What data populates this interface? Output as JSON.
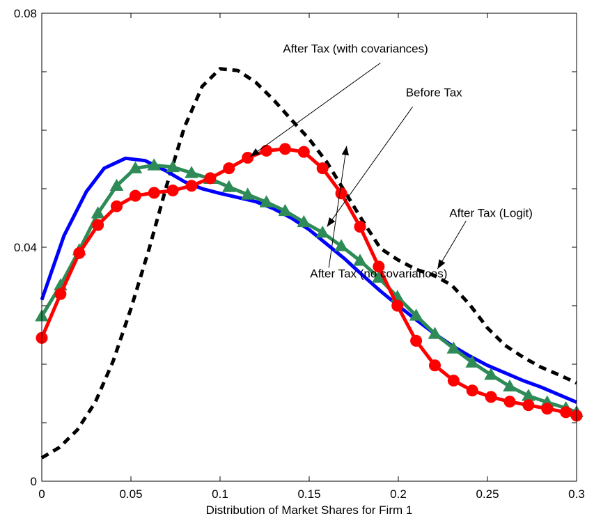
{
  "chart_data": {
    "type": "line",
    "title": "",
    "xlabel": "Distribution of Market Shares for Firm 1",
    "ylabel": "",
    "xlim": [
      0,
      0.3
    ],
    "ylim": [
      0,
      0.08
    ],
    "grid": false,
    "x_ticks": [
      0,
      0.05,
      0.1,
      0.15,
      0.2,
      0.25,
      0.3
    ],
    "x_tick_labels": [
      "0",
      "0.05",
      "0.1",
      "0.15",
      "0.2",
      "0.25",
      "0.3"
    ],
    "y_ticks": [
      0,
      0.04,
      0.08
    ],
    "y_tick_labels": [
      "0",
      "0.04",
      "0.08"
    ],
    "series": [
      {
        "color": "#000000",
        "style": "dashed",
        "marker": "none",
        "x": [
          0,
          0.01,
          0.02,
          0.03,
          0.04,
          0.05,
          0.06,
          0.07,
          0.08,
          0.09,
          0.1,
          0.11,
          0.12,
          0.13,
          0.14,
          0.15,
          0.16,
          0.17,
          0.18,
          0.19,
          0.2,
          0.21,
          0.22,
          0.23,
          0.24,
          0.25,
          0.26,
          0.27,
          0.28,
          0.29,
          0.3
        ],
        "y": [
          0.004,
          0.0058,
          0.0088,
          0.0135,
          0.0205,
          0.0295,
          0.0395,
          0.0505,
          0.0605,
          0.0675,
          0.0705,
          0.0702,
          0.0682,
          0.0652,
          0.0618,
          0.0585,
          0.0545,
          0.0495,
          0.0445,
          0.0398,
          0.0378,
          0.0362,
          0.0352,
          0.0335,
          0.0302,
          0.0262,
          0.0232,
          0.0212,
          0.0195,
          0.0182,
          0.0168
        ]
      },
      {
        "color": "#0000ff",
        "style": "solid",
        "marker": "none",
        "x": [
          0,
          0.0125,
          0.025,
          0.035,
          0.047,
          0.058,
          0.07,
          0.08,
          0.09,
          0.1,
          0.11,
          0.12,
          0.13,
          0.14,
          0.15,
          0.16,
          0.17,
          0.18,
          0.19,
          0.2,
          0.21,
          0.22,
          0.23,
          0.24,
          0.25,
          0.26,
          0.27,
          0.28,
          0.29,
          0.3
        ],
        "y": [
          0.031,
          0.042,
          0.0495,
          0.0535,
          0.0552,
          0.0548,
          0.053,
          0.0512,
          0.05,
          0.0492,
          0.0485,
          0.0478,
          0.0466,
          0.045,
          0.043,
          0.0405,
          0.038,
          0.0352,
          0.0325,
          0.03,
          0.0276,
          0.0253,
          0.0232,
          0.0214,
          0.0198,
          0.0185,
          0.0172,
          0.0161,
          0.0148,
          0.0135
        ]
      },
      {
        "color": "#2e8b57",
        "style": "solid",
        "marker": "triangle",
        "x": [
          0,
          0.0105,
          0.021,
          0.0315,
          0.042,
          0.0525,
          0.063,
          0.0735,
          0.084,
          0.0945,
          0.105,
          0.1155,
          0.126,
          0.1365,
          0.147,
          0.1575,
          0.168,
          0.1785,
          0.189,
          0.1995,
          0.21,
          0.2205,
          0.231,
          0.2415,
          0.252,
          0.2625,
          0.273,
          0.2835,
          0.294,
          0.3
        ],
        "y": [
          0.0282,
          0.0335,
          0.0395,
          0.0458,
          0.0505,
          0.0535,
          0.054,
          0.0537,
          0.0527,
          0.0517,
          0.0503,
          0.049,
          0.0477,
          0.0462,
          0.0443,
          0.0425,
          0.0402,
          0.0377,
          0.0348,
          0.0315,
          0.0283,
          0.0252,
          0.0227,
          0.0203,
          0.0182,
          0.0162,
          0.0146,
          0.0135,
          0.0125,
          0.0118
        ]
      },
      {
        "color": "#ff0000",
        "style": "solid",
        "marker": "circle",
        "x": [
          0,
          0.0105,
          0.021,
          0.0315,
          0.042,
          0.0525,
          0.063,
          0.0735,
          0.084,
          0.0945,
          0.105,
          0.1155,
          0.126,
          0.1365,
          0.147,
          0.1575,
          0.168,
          0.1785,
          0.189,
          0.1995,
          0.21,
          0.2205,
          0.231,
          0.2415,
          0.252,
          0.2625,
          0.273,
          0.2835,
          0.294,
          0.3
        ],
        "y": [
          0.0245,
          0.032,
          0.039,
          0.0438,
          0.047,
          0.0488,
          0.0493,
          0.0497,
          0.0505,
          0.0518,
          0.0535,
          0.0553,
          0.0565,
          0.0568,
          0.0563,
          0.0535,
          0.0492,
          0.0435,
          0.0367,
          0.03,
          0.024,
          0.0198,
          0.0172,
          0.0155,
          0.0144,
          0.0136,
          0.013,
          0.0124,
          0.0118,
          0.0112
        ]
      }
    ],
    "annotations": [
      {
        "text": "After Tax (with covariances)",
        "text_x": 0.176,
        "text_y": 0.0733,
        "anchor": "middle",
        "arrow_from": [
          0.19,
          0.0715
        ],
        "arrow_to": [
          0.117,
          0.0555
        ]
      },
      {
        "text": "Before Tax",
        "text_x": 0.22,
        "text_y": 0.0658,
        "anchor": "middle",
        "arrow_from": [
          0.208,
          0.064
        ],
        "arrow_to": [
          0.16,
          0.0435
        ]
      },
      {
        "text": "After Tax (Logit)",
        "text_x": 0.252,
        "text_y": 0.0452,
        "anchor": "middle",
        "arrow_from": [
          0.238,
          0.0445
        ],
        "arrow_to": [
          0.222,
          0.0363
        ]
      },
      {
        "text": "After Tax (no covariances)",
        "text_x": 0.189,
        "text_y": 0.0348,
        "anchor": "middle",
        "arrow_from": [
          0.161,
          0.0365
        ],
        "arrow_to": [
          0.171,
          0.0573
        ]
      }
    ]
  }
}
